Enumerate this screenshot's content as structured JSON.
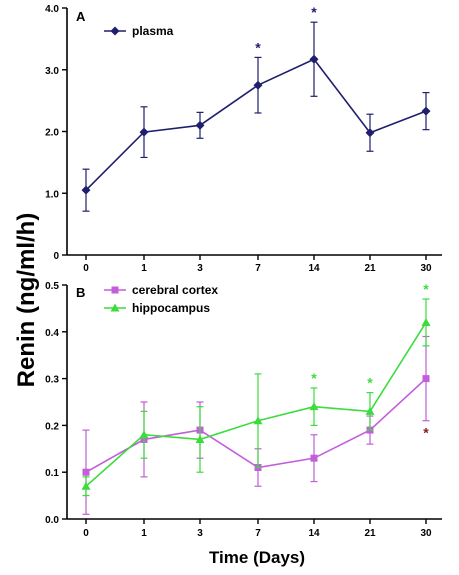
{
  "chart_data": [
    {
      "type": "line",
      "panel": "A",
      "categories": [
        "0",
        "1",
        "3",
        "7",
        "14",
        "21",
        "30"
      ],
      "ylim": [
        0,
        4
      ],
      "yticks": [
        "0",
        "1.0",
        "2.0",
        "3.0",
        "4.0"
      ],
      "grid": false,
      "legend_position": "top-left",
      "series": [
        {
          "name": "plasma",
          "color": "#1f1f6e",
          "marker": "diamond",
          "values": [
            1.05,
            1.99,
            2.1,
            2.75,
            3.17,
            1.98,
            2.33
          ],
          "errors": [
            0.34,
            0.41,
            0.21,
            0.45,
            0.6,
            0.3,
            0.3
          ],
          "significance": [
            "",
            "",
            "",
            "*",
            "*",
            "",
            ""
          ]
        }
      ]
    },
    {
      "type": "line",
      "panel": "B",
      "categories": [
        "0",
        "1",
        "3",
        "7",
        "14",
        "21",
        "30"
      ],
      "ylim": [
        0,
        0.5
      ],
      "yticks": [
        "0.0",
        "0.1",
        "0.2",
        "0.3",
        "0.4",
        "0.5"
      ],
      "grid": false,
      "legend_position": "top-left",
      "series": [
        {
          "name": "cerebral cortex",
          "color": "#c25ed9",
          "marker": "square",
          "values": [
            0.1,
            0.17,
            0.19,
            0.11,
            0.13,
            0.19,
            0.3
          ],
          "errors": [
            0.09,
            0.08,
            0.06,
            0.04,
            0.05,
            0.03,
            0.09
          ],
          "significance": [
            "",
            "",
            "",
            "",
            "",
            "",
            "*"
          ],
          "significance_color": "#8b1a1a"
        },
        {
          "name": "hippocampus",
          "color": "#3ddc3d",
          "marker": "triangle",
          "values": [
            0.07,
            0.18,
            0.17,
            0.21,
            0.24,
            0.23,
            0.42
          ],
          "errors": [
            0.02,
            0.05,
            0.07,
            0.1,
            0.04,
            0.04,
            0.05
          ],
          "significance": [
            "",
            "",
            "",
            "",
            "*",
            "*",
            "*"
          ],
          "significance_color": "#3ddc3d"
        }
      ]
    }
  ],
  "ylabel": "Renin (ng/ml/h)",
  "xlabel": "Time (Days)"
}
